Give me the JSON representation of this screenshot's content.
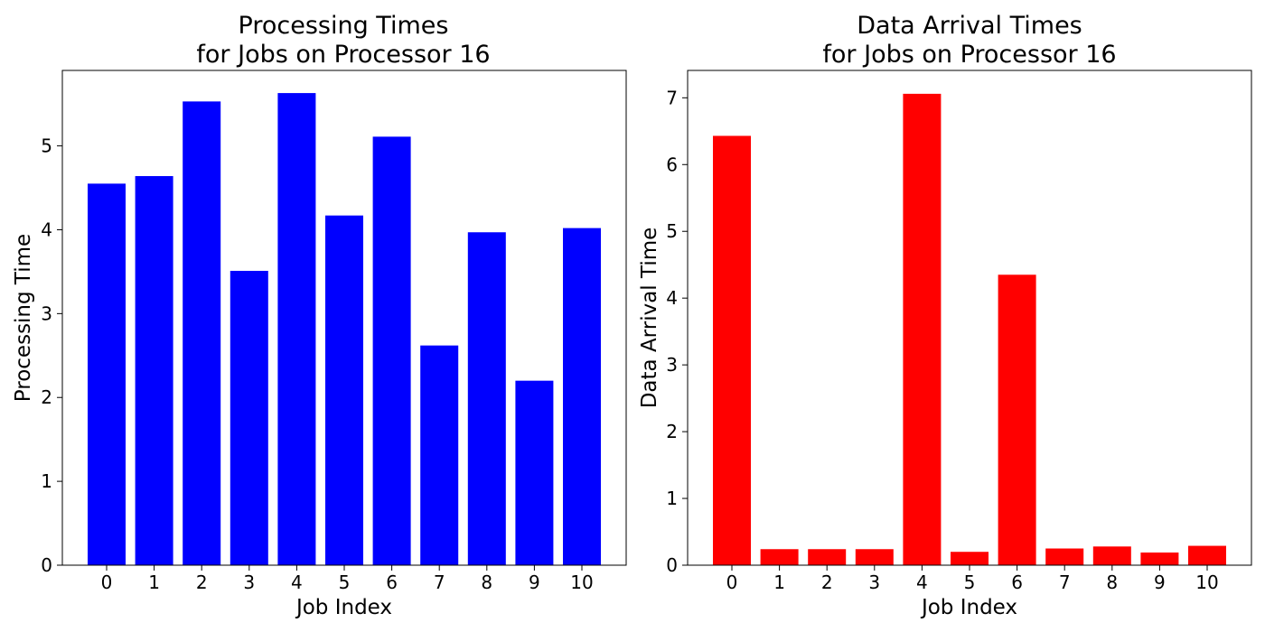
{
  "chart_data": [
    {
      "type": "bar",
      "title_line1": "Processing Times",
      "title_line2": "for Jobs on Processor 16",
      "xlabel": "Job Index",
      "ylabel": "Processing Time",
      "categories": [
        "0",
        "1",
        "2",
        "3",
        "4",
        "5",
        "6",
        "7",
        "8",
        "9",
        "10"
      ],
      "values": [
        4.55,
        4.64,
        5.53,
        3.51,
        5.63,
        4.17,
        5.11,
        2.62,
        3.97,
        2.2,
        4.02
      ],
      "ylim": [
        0,
        5.9
      ],
      "yticks": [
        0,
        1,
        2,
        3,
        4,
        5
      ],
      "color": "#0000ff",
      "grid": false
    },
    {
      "type": "bar",
      "title_line1": "Data Arrival Times",
      "title_line2": "for Jobs on Processor 16",
      "xlabel": "Job Index",
      "ylabel": "Data Arrival Time",
      "categories": [
        "0",
        "1",
        "2",
        "3",
        "4",
        "5",
        "6",
        "7",
        "8",
        "9",
        "10"
      ],
      "values": [
        6.43,
        0.24,
        0.24,
        0.24,
        7.06,
        0.2,
        4.35,
        0.25,
        0.28,
        0.19,
        0.29
      ],
      "ylim": [
        0,
        7.41
      ],
      "yticks": [
        0,
        1,
        2,
        3,
        4,
        5,
        6,
        7
      ],
      "color": "#ff0000",
      "grid": false
    }
  ]
}
